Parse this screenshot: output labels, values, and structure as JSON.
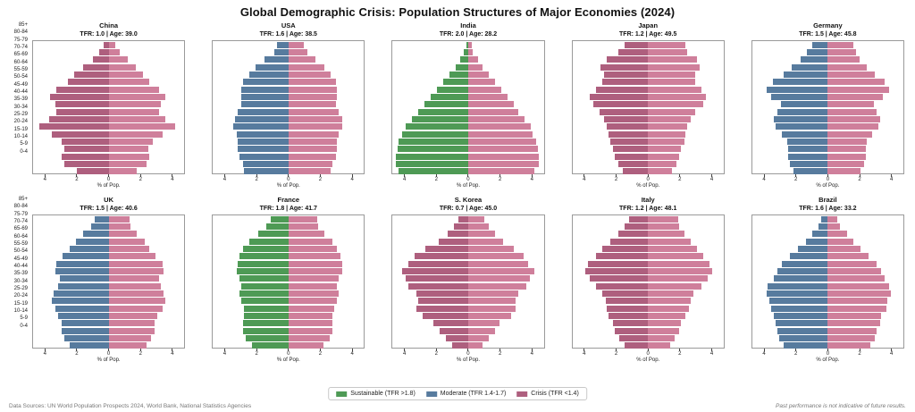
{
  "title": "Global Demographic Crisis: Population Structures of Major Economies (2024)",
  "footer": {
    "left": "Data Sources: UN World Population Prospects 2024, World Bank, National Statistics Agencies",
    "right": "Past performance is not indicative of future results."
  },
  "legend": {
    "items": [
      {
        "key": "sustainable",
        "label": "Sustainable (TFR >1.8)",
        "color": "#4e9a55"
      },
      {
        "key": "moderate",
        "label": "Moderate (TFR 1.4-1.7)",
        "color": "#577b9e"
      },
      {
        "key": "crisis",
        "label": "Crisis (TFR <1.4)",
        "color": "#ae5f7e"
      }
    ]
  },
  "colors": {
    "sustainable": "#4e9a55",
    "moderate": "#577b9e",
    "crisis": "#ae5f7e",
    "female": "#cf7f9b"
  },
  "axis": {
    "xlabel": "% of Pop.",
    "xmax": 4.8,
    "x_tick_values": [
      -4,
      -2,
      0,
      2,
      4
    ],
    "x_tick_labels": [
      "4",
      "2",
      "0",
      "2",
      "4"
    ],
    "age_groups": [
      "85+",
      "80-84",
      "75-79",
      "70-74",
      "65-69",
      "60-64",
      "55-59",
      "50-54",
      "45-49",
      "40-44",
      "35-39",
      "30-34",
      "25-29",
      "20-24",
      "15-19",
      "10-14",
      "5-9",
      "0-4"
    ]
  },
  "chart_data": [
    {
      "type": "pyramid-bar",
      "country": "China",
      "tfr": 1.0,
      "median_age": 39.0,
      "subtitle": "TFR: 1.0 | Age: 39.0",
      "category": "crisis",
      "male": [
        0.3,
        0.6,
        1.0,
        1.6,
        2.2,
        2.6,
        3.3,
        3.7,
        3.4,
        3.3,
        3.8,
        4.4,
        3.6,
        3.0,
        2.8,
        3.0,
        2.8,
        2.0
      ],
      "female": [
        0.4,
        0.7,
        1.2,
        1.7,
        2.2,
        2.6,
        3.2,
        3.6,
        3.3,
        3.2,
        3.6,
        4.2,
        3.4,
        2.8,
        2.5,
        2.6,
        2.4,
        1.8
      ]
    },
    {
      "type": "pyramid-bar",
      "country": "USA",
      "tfr": 1.6,
      "median_age": 38.5,
      "subtitle": "TFR: 1.6 | Age: 38.5",
      "category": "moderate",
      "male": [
        0.7,
        0.9,
        1.5,
        2.1,
        2.5,
        2.9,
        3.0,
        3.0,
        3.0,
        3.2,
        3.4,
        3.5,
        3.3,
        3.2,
        3.2,
        3.1,
        2.9,
        2.8
      ],
      "female": [
        1.0,
        1.2,
        1.7,
        2.3,
        2.7,
        3.0,
        3.1,
        3.1,
        3.0,
        3.2,
        3.4,
        3.4,
        3.2,
        3.1,
        3.1,
        3.0,
        2.8,
        2.7
      ]
    },
    {
      "type": "pyramid-bar",
      "country": "India",
      "tfr": 2.0,
      "median_age": 28.2,
      "subtitle": "TFR: 2.0 | Age: 28.2",
      "category": "sustainable",
      "male": [
        0.1,
        0.3,
        0.5,
        0.8,
        1.2,
        1.6,
        2.0,
        2.4,
        2.8,
        3.2,
        3.6,
        4.0,
        4.2,
        4.4,
        4.5,
        4.6,
        4.6,
        4.4
      ],
      "female": [
        0.2,
        0.3,
        0.6,
        0.9,
        1.3,
        1.7,
        2.1,
        2.5,
        2.9,
        3.2,
        3.6,
        4.0,
        4.1,
        4.3,
        4.4,
        4.5,
        4.5,
        4.2
      ]
    },
    {
      "type": "pyramid-bar",
      "country": "Japan",
      "tfr": 1.2,
      "median_age": 49.5,
      "subtitle": "TFR: 1.2 | Age: 49.5",
      "category": "crisis",
      "male": [
        1.5,
        1.9,
        2.6,
        3.0,
        2.8,
        2.9,
        3.3,
        3.7,
        3.5,
        3.1,
        2.8,
        2.6,
        2.5,
        2.4,
        2.2,
        2.1,
        1.9,
        1.6
      ],
      "female": [
        2.4,
        2.5,
        3.1,
        3.3,
        3.0,
        3.0,
        3.4,
        3.7,
        3.5,
        3.0,
        2.7,
        2.5,
        2.4,
        2.3,
        2.1,
        2.0,
        1.8,
        1.5
      ]
    },
    {
      "type": "pyramid-bar",
      "country": "Germany",
      "tfr": 1.5,
      "median_age": 45.8,
      "subtitle": "TFR: 1.5 | Age: 45.8",
      "category": "moderate",
      "male": [
        1.0,
        1.3,
        1.7,
        2.3,
        2.8,
        3.5,
        3.9,
        3.6,
        3.0,
        3.2,
        3.4,
        3.3,
        2.9,
        2.6,
        2.5,
        2.5,
        2.4,
        2.2
      ],
      "female": [
        1.6,
        1.8,
        2.0,
        2.5,
        3.0,
        3.6,
        3.9,
        3.5,
        2.9,
        3.1,
        3.3,
        3.2,
        2.8,
        2.5,
        2.4,
        2.4,
        2.3,
        2.1
      ]
    },
    {
      "type": "pyramid-bar",
      "country": "UK",
      "tfr": 1.5,
      "median_age": 40.6,
      "subtitle": "TFR: 1.5 | Age: 40.6",
      "category": "moderate",
      "male": [
        0.9,
        1.1,
        1.6,
        2.1,
        2.5,
        2.9,
        3.3,
        3.4,
        3.1,
        3.2,
        3.5,
        3.6,
        3.4,
        3.2,
        3.0,
        3.0,
        2.8,
        2.5
      ],
      "female": [
        1.3,
        1.4,
        1.8,
        2.3,
        2.6,
        3.0,
        3.4,
        3.5,
        3.2,
        3.3,
        3.5,
        3.6,
        3.4,
        3.1,
        2.9,
        2.9,
        2.7,
        2.4
      ]
    },
    {
      "type": "pyramid-bar",
      "country": "France",
      "tfr": 1.8,
      "median_age": 41.7,
      "subtitle": "TFR: 1.8 | Age: 41.7",
      "category": "sustainable",
      "male": [
        1.1,
        1.4,
        1.9,
        2.5,
        2.9,
        3.1,
        3.2,
        3.3,
        3.1,
        3.0,
        3.1,
        3.0,
        2.8,
        2.8,
        2.9,
        2.9,
        2.7,
        2.3
      ],
      "female": [
        1.8,
        1.9,
        2.3,
        2.8,
        3.1,
        3.3,
        3.4,
        3.4,
        3.2,
        3.1,
        3.2,
        3.1,
        2.9,
        2.8,
        2.8,
        2.8,
        2.6,
        2.2
      ]
    },
    {
      "type": "pyramid-bar",
      "country": "S. Korea",
      "tfr": 0.7,
      "median_age": 45.0,
      "subtitle": "TFR: 0.7 | Age: 45.0",
      "category": "crisis",
      "male": [
        0.6,
        0.9,
        1.3,
        1.9,
        2.7,
        3.4,
        3.8,
        4.2,
        4.0,
        3.8,
        3.3,
        3.2,
        3.3,
        2.9,
        2.2,
        1.8,
        1.4,
        1.0
      ],
      "female": [
        1.0,
        1.3,
        1.7,
        2.2,
        2.9,
        3.5,
        3.8,
        4.2,
        3.9,
        3.7,
        3.2,
        3.0,
        3.0,
        2.7,
        2.0,
        1.7,
        1.3,
        0.9
      ]
    },
    {
      "type": "pyramid-bar",
      "country": "Italy",
      "tfr": 1.2,
      "median_age": 48.1,
      "subtitle": "TFR: 1.2 | Age: 48.1",
      "category": "crisis",
      "male": [
        1.2,
        1.5,
        1.9,
        2.4,
        2.9,
        3.3,
        3.8,
        4.0,
        3.7,
        3.3,
        2.9,
        2.7,
        2.6,
        2.5,
        2.2,
        2.1,
        1.8,
        1.5
      ],
      "female": [
        1.9,
        2.0,
        2.3,
        2.7,
        3.1,
        3.5,
        3.9,
        4.1,
        3.8,
        3.4,
        2.9,
        2.7,
        2.6,
        2.4,
        2.1,
        2.0,
        1.7,
        1.4
      ]
    },
    {
      "type": "pyramid-bar",
      "country": "Brazil",
      "tfr": 1.6,
      "median_age": 33.2,
      "subtitle": "TFR: 1.6 | Age: 33.2",
      "category": "moderate",
      "male": [
        0.4,
        0.6,
        1.0,
        1.4,
        1.9,
        2.4,
        2.9,
        3.2,
        3.4,
        3.8,
        3.9,
        3.7,
        3.6,
        3.4,
        3.3,
        3.2,
        3.1,
        2.8
      ],
      "female": [
        0.6,
        0.8,
        1.2,
        1.6,
        2.1,
        2.6,
        3.1,
        3.4,
        3.6,
        3.9,
        4.0,
        3.8,
        3.7,
        3.4,
        3.3,
        3.1,
        3.0,
        2.7
      ]
    }
  ]
}
